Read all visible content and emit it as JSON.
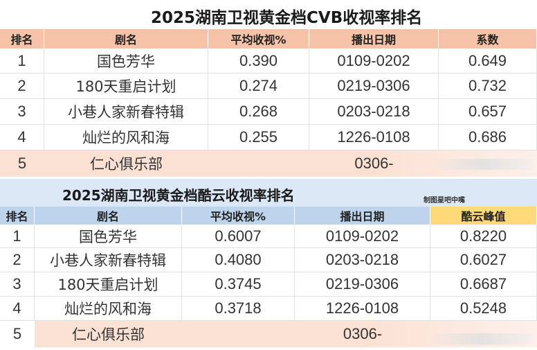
{
  "table1": {
    "title": "2025湖南卫视黄金档CVB收视率排名",
    "headers": [
      "排名",
      "剧名",
      "平均收视%",
      "播出日期",
      "系数"
    ],
    "rows": [
      [
        "1",
        "国色芳华",
        "0.390",
        "0109-0202",
        "0.649"
      ],
      [
        "2",
        "180天重启计划",
        "0.274",
        "0219-0306",
        "0.732"
      ],
      [
        "3",
        "小巷人家新春特辑",
        "0.268",
        "0203-0218",
        "0.657"
      ],
      [
        "4",
        "灿烂的风和海",
        "0.255",
        "1226-0108",
        "0.686"
      ],
      [
        "5",
        "仁心俱乐部",
        "",
        "0306-",
        ""
      ]
    ]
  },
  "table2": {
    "title": "2025湖南卫视黄金档酷云收视率排名",
    "note": "制图星吧中嘴",
    "headers": [
      "排名",
      "剧名",
      "平均收视%",
      "播出日期",
      "酷云峰值"
    ],
    "rows": [
      [
        "1",
        "国色芳华",
        "0.6007",
        "0109-0202",
        "0.8220"
      ],
      [
        "2",
        "小巷人家新春特辑",
        "0.4080",
        "0203-0218",
        "0.6027"
      ],
      [
        "3",
        "180天重启计划",
        "0.3745",
        "0219-0306",
        "0.6687"
      ],
      [
        "4",
        "灿烂的风和海",
        "0.3718",
        "1226-0108",
        "0.5248"
      ],
      [
        "5",
        "仁心俱乐部",
        "",
        "0306-",
        ""
      ]
    ]
  },
  "colors": {
    "header1": "#f7c3a8",
    "title1_bg": "#ffffff",
    "row5_1": "#fbe1d4",
    "title2_bg": "#dce8f5",
    "header2": "#bed4ec",
    "header2_highlight": "#ffd97a",
    "row5_2": "#fbe1d4"
  }
}
